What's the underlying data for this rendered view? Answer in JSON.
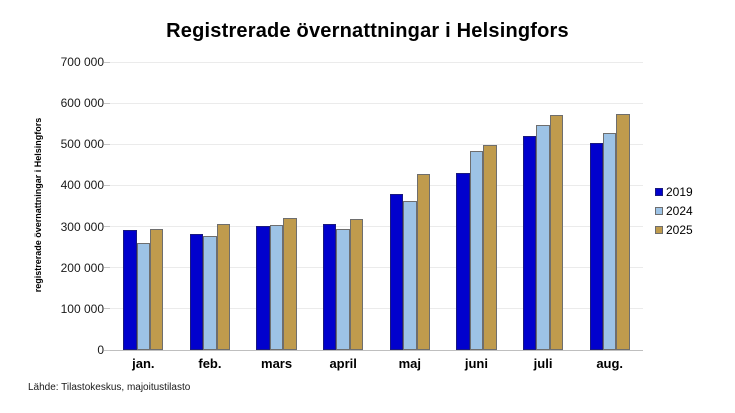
{
  "title": "Registrerade övernattningar i Helsingfors",
  "footer": {
    "source": "Lähde: Tilastokeskus, majoitustilasto"
  },
  "chart_data": {
    "type": "bar",
    "title": "Registrerade övernattningar i Helsingfors",
    "xlabel": "",
    "ylabel": "registrerade övernattningar i Helsingfors",
    "categories": [
      "jan.",
      "feb.",
      "mars",
      "april",
      "maj",
      "juni",
      "juli",
      "aug."
    ],
    "series": [
      {
        "name": "2019",
        "color": "#0101CD",
        "border_color": "#1a1a7e",
        "values": [
          291000,
          282000,
          302000,
          307000,
          380000,
          431000,
          520000,
          502000
        ]
      },
      {
        "name": "2024",
        "color": "#9DC3E6",
        "border_color": "#6e6e6e",
        "values": [
          261000,
          277000,
          305000,
          293000,
          363000,
          483000,
          547000,
          528000
        ]
      },
      {
        "name": "2025",
        "color": "#BF9B4D",
        "border_color": "#6e6e6e",
        "values": [
          294000,
          306000,
          321000,
          318000,
          427000,
          498000,
          572000,
          573000
        ]
      }
    ],
    "ylim": [
      0,
      700000
    ],
    "ytick_step": 100000,
    "grid": true,
    "legend_position": "right"
  }
}
